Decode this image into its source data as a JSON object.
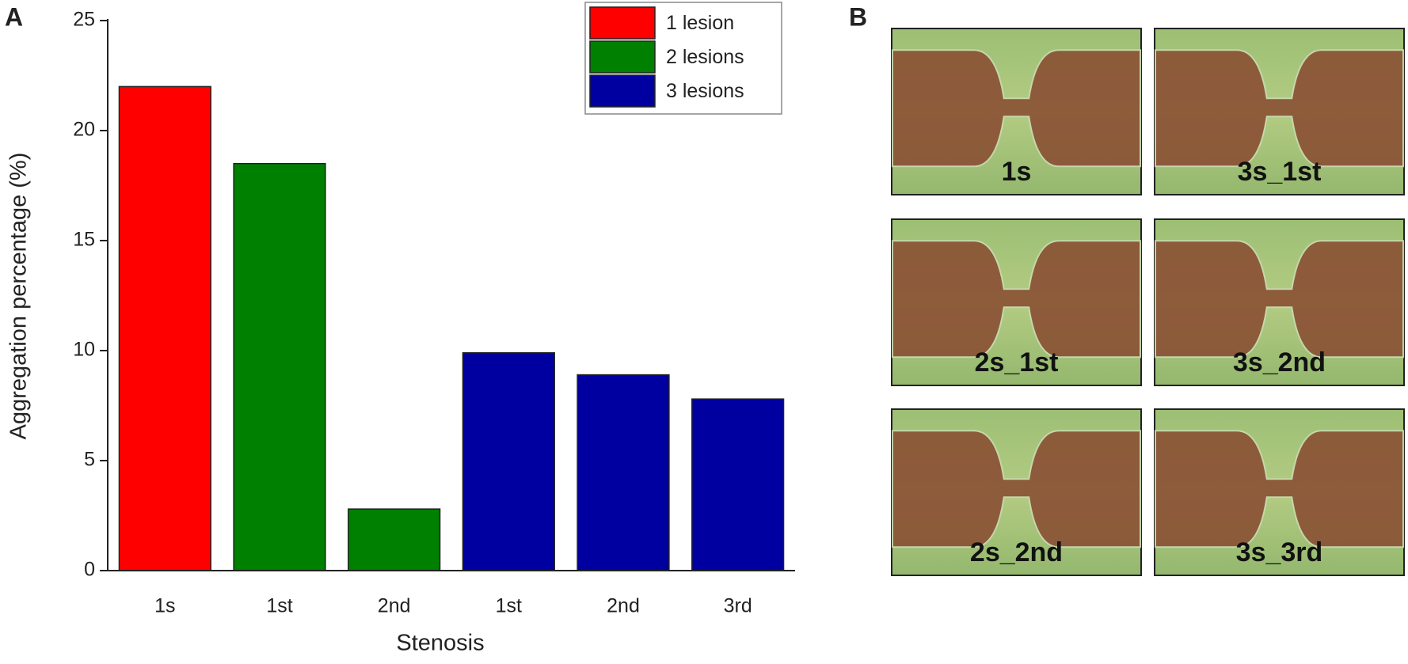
{
  "chart_data": {
    "type": "bar",
    "panel_label": "A",
    "categories": [
      "1s",
      "1st",
      "2nd",
      "1st",
      "2nd",
      "3rd"
    ],
    "series": [
      {
        "name": "1 lesion",
        "color": "#ff0000",
        "values": [
          22,
          null,
          null,
          null,
          null,
          null
        ]
      },
      {
        "name": "2 lesions",
        "color": "#008000",
        "values": [
          null,
          18.5,
          2.8,
          null,
          null,
          null
        ]
      },
      {
        "name": "3 lesions",
        "color": "#0000a0",
        "values": [
          null,
          null,
          null,
          9.9,
          8.9,
          7.8
        ]
      }
    ],
    "x_label": "Stenosis",
    "y_label": "Aggregation percentage (%)",
    "ylim": [
      0,
      25
    ],
    "yticks": [
      0,
      5,
      10,
      15,
      20,
      25
    ],
    "legend": "upper right"
  },
  "panel_b": {
    "label": "B",
    "images": [
      "1s",
      "3s_1st",
      "2s_1st",
      "3s_2nd",
      "2s_2nd",
      "3s_3rd"
    ]
  }
}
